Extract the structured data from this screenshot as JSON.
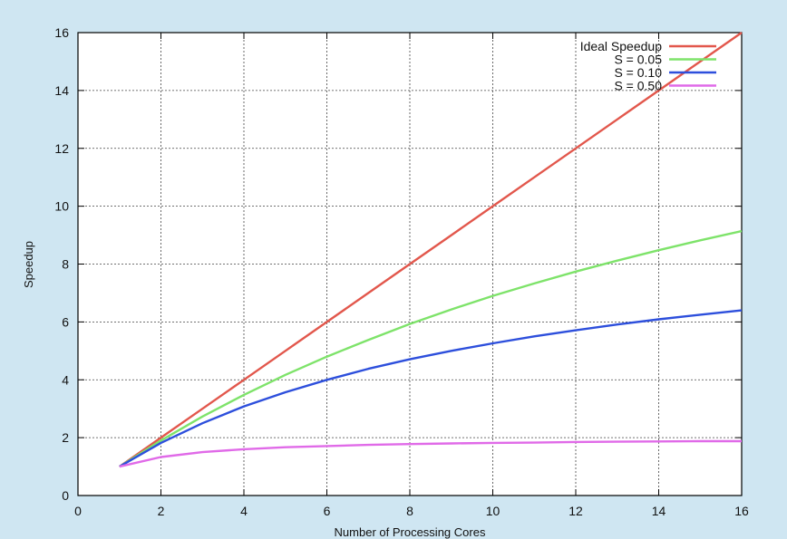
{
  "chart_data": {
    "type": "line",
    "xlabel": "Number of Processing Cores",
    "ylabel": "Speedup",
    "xlim": [
      0,
      16
    ],
    "ylim": [
      0,
      16
    ],
    "xticks": [
      0,
      2,
      4,
      6,
      8,
      10,
      12,
      14,
      16
    ],
    "yticks": [
      0,
      2,
      4,
      6,
      8,
      10,
      12,
      14,
      16
    ],
    "grid": true,
    "legend_position": "top-right",
    "x": [
      1,
      2,
      3,
      4,
      5,
      6,
      7,
      8,
      9,
      10,
      11,
      12,
      13,
      14,
      15,
      16
    ],
    "series": [
      {
        "name": "Ideal Speedup",
        "color": "#e2574c",
        "values": [
          1,
          2,
          3,
          4,
          5,
          6,
          7,
          8,
          9,
          10,
          11,
          12,
          13,
          14,
          15,
          16
        ]
      },
      {
        "name": "S = 0.05",
        "color": "#7ee36a",
        "values": [
          1,
          1.9,
          2.73,
          3.48,
          4.17,
          4.8,
          5.38,
          5.93,
          6.43,
          6.9,
          7.33,
          7.74,
          8.12,
          8.48,
          8.82,
          9.14
        ]
      },
      {
        "name": "S = 0.10",
        "color": "#2d4fdc",
        "values": [
          1,
          1.82,
          2.5,
          3.08,
          3.57,
          4.0,
          4.38,
          4.71,
          5.0,
          5.26,
          5.5,
          5.71,
          5.91,
          6.09,
          6.25,
          6.4
        ]
      },
      {
        "name": "S = 0.50",
        "color": "#e06ae8",
        "values": [
          1,
          1.33,
          1.5,
          1.6,
          1.67,
          1.71,
          1.75,
          1.78,
          1.8,
          1.82,
          1.83,
          1.85,
          1.86,
          1.87,
          1.88,
          1.88
        ]
      }
    ]
  }
}
